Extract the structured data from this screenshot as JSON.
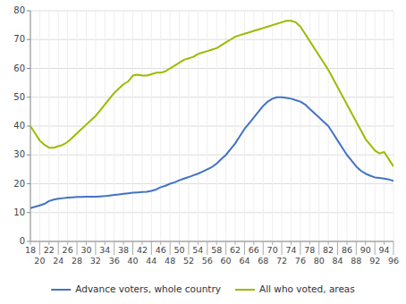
{
  "chart_data": {
    "type": "line",
    "x": [
      18,
      19,
      20,
      21,
      22,
      23,
      24,
      25,
      26,
      27,
      28,
      29,
      30,
      31,
      32,
      33,
      34,
      35,
      36,
      37,
      38,
      39,
      40,
      41,
      42,
      43,
      44,
      45,
      46,
      47,
      48,
      49,
      50,
      51,
      52,
      53,
      54,
      55,
      56,
      57,
      58,
      59,
      60,
      61,
      62,
      63,
      64,
      65,
      66,
      67,
      68,
      69,
      70,
      71,
      72,
      73,
      74,
      75,
      76,
      77,
      78,
      79,
      80,
      81,
      82,
      83,
      84,
      85,
      86,
      87,
      88,
      89,
      90,
      91,
      92,
      93,
      94,
      95,
      96
    ],
    "series": [
      {
        "name": "Advance voters, whole country",
        "color": "#4472c4",
        "values": [
          11.5,
          12.0,
          12.5,
          13.0,
          14.0,
          14.5,
          14.8,
          15.0,
          15.2,
          15.3,
          15.4,
          15.4,
          15.5,
          15.5,
          15.5,
          15.6,
          15.7,
          15.9,
          16.1,
          16.3,
          16.5,
          16.7,
          16.9,
          17.0,
          17.1,
          17.2,
          17.5,
          18.0,
          18.8,
          19.3,
          20.0,
          20.5,
          21.2,
          21.8,
          22.3,
          22.9,
          23.5,
          24.2,
          25.0,
          25.8,
          27.0,
          28.5,
          30.0,
          32.0,
          34.0,
          36.5,
          39.0,
          41.0,
          43.0,
          45.0,
          47.0,
          48.5,
          49.5,
          50.0,
          50.0,
          49.8,
          49.5,
          49.0,
          48.5,
          47.5,
          46.0,
          44.5,
          43.0,
          41.5,
          40.0,
          37.5,
          35.0,
          32.5,
          30.0,
          28.0,
          26.0,
          24.5,
          23.5,
          22.8,
          22.2,
          22.0,
          21.8,
          21.5,
          21.0
        ]
      },
      {
        "name": "All who voted, areas",
        "color": "#9bbb00",
        "values": [
          40.0,
          37.5,
          35.0,
          33.5,
          32.5,
          32.5,
          33.0,
          33.5,
          34.5,
          36.0,
          37.5,
          39.0,
          40.5,
          42.0,
          43.5,
          45.5,
          47.5,
          49.5,
          51.5,
          53.0,
          54.5,
          55.5,
          57.5,
          57.8,
          57.5,
          57.5,
          58.0,
          58.5,
          58.5,
          59.0,
          60.0,
          61.0,
          62.0,
          63.0,
          63.5,
          64.0,
          65.0,
          65.5,
          66.0,
          66.5,
          67.0,
          68.0,
          69.0,
          70.0,
          71.0,
          71.5,
          72.0,
          72.5,
          73.0,
          73.5,
          74.0,
          74.5,
          75.0,
          75.5,
          76.0,
          76.5,
          76.5,
          76.0,
          74.5,
          72.0,
          69.5,
          67.0,
          64.5,
          62.0,
          59.5,
          56.5,
          53.5,
          50.5,
          47.5,
          44.5,
          41.5,
          38.5,
          35.5,
          33.5,
          31.5,
          30.5,
          31.0,
          28.5,
          26.0
        ]
      }
    ],
    "xlim": [
      18,
      96
    ],
    "xticks": [
      18,
      20,
      22,
      24,
      26,
      28,
      30,
      32,
      34,
      36,
      38,
      40,
      42,
      44,
      46,
      48,
      50,
      52,
      54,
      56,
      58,
      60,
      62,
      64,
      66,
      68,
      70,
      72,
      74,
      76,
      78,
      80,
      82,
      84,
      86,
      88,
      90,
      92,
      94,
      96
    ],
    "ylim": [
      0,
      80
    ],
    "yticks": [
      0,
      10,
      20,
      30,
      40,
      50,
      60,
      70,
      80
    ],
    "grid": true,
    "legend": "bottom"
  }
}
